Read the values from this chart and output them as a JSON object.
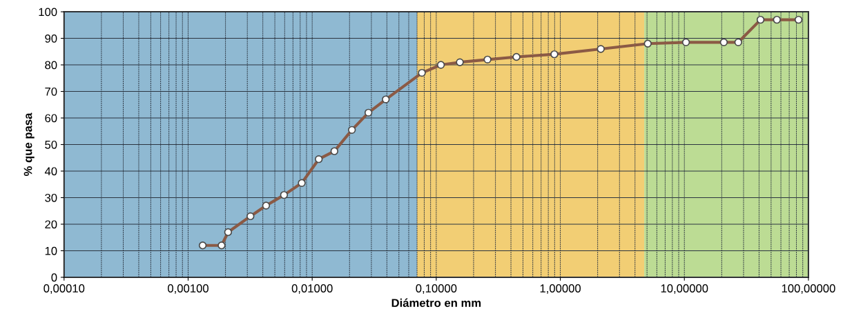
{
  "chart_data": {
    "type": "line",
    "xlabel": "Diámetro en mm",
    "ylabel": "% que pasa",
    "log": "x",
    "grid": true,
    "marker": "circle",
    "line_style": "solid",
    "x": [
      0.00131,
      0.00186,
      0.0021,
      0.00318,
      0.00425,
      0.00593,
      0.00824,
      0.0113,
      0.0151,
      0.0209,
      0.0284,
      0.0392,
      0.0766,
      0.109,
      0.155,
      0.259,
      0.443,
      0.895,
      2.12,
      5.07,
      10.3,
      20.8,
      27.2,
      41.1,
      55.7,
      83.2
    ],
    "series": [
      {
        "color": "#8b5a45",
        "values": [
          12,
          12,
          17,
          23,
          27,
          31,
          35.5,
          44.5,
          47.5,
          55.5,
          62,
          67,
          77,
          80,
          81,
          82,
          83,
          84,
          86,
          88,
          88.5,
          88.5,
          88.5,
          97,
          97,
          97
        ]
      }
    ],
    "xlim": [
      0.0001,
      100
    ],
    "xticks": [
      {
        "value": 0.0001,
        "label": "0,00010"
      },
      {
        "value": 0.001,
        "label": "0,00100"
      },
      {
        "value": 0.01,
        "label": "0,01000"
      },
      {
        "value": 0.1,
        "label": "0,10000"
      },
      {
        "value": 1,
        "label": "1,00000"
      },
      {
        "value": 10,
        "label": "10,00000"
      },
      {
        "value": 100,
        "label": "100,00000"
      }
    ],
    "ylim": [
      0,
      100
    ],
    "yticks": [
      0,
      10,
      20,
      30,
      40,
      50,
      60,
      70,
      80,
      90,
      100
    ],
    "bands": [
      {
        "axis": "x",
        "from": 0.0001,
        "to": 0.07,
        "color": "#8fb9d2"
      },
      {
        "axis": "x",
        "from": 0.07,
        "to": 4.75,
        "color": "#f2ce74"
      },
      {
        "axis": "x",
        "from": 4.75,
        "to": 100,
        "color": "#bcdc94"
      }
    ]
  }
}
